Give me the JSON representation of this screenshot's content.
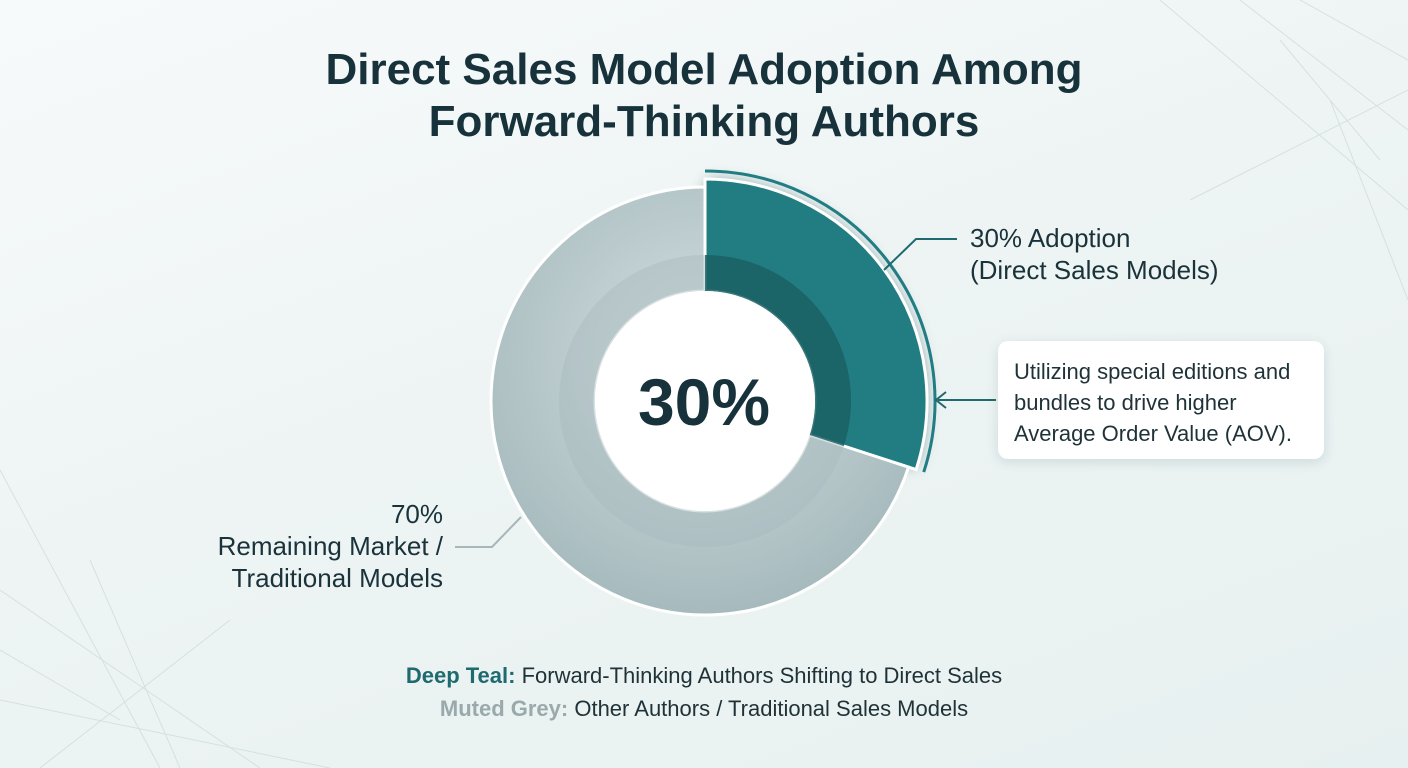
{
  "title_lines": [
    "Direct Sales Model Adoption Among",
    "Forward-Thinking Authors"
  ],
  "chart_data": {
    "type": "pie",
    "style": "donut",
    "slices": [
      {
        "label_line1": "30% Adoption",
        "label_line2": "(Direct Sales Models)",
        "value": 30,
        "color": "#217d83"
      },
      {
        "label_line1": "70%",
        "label_line2": "Remaining Market /",
        "label_line3": "Traditional Models",
        "value": 70,
        "color": "#b7c8ca"
      }
    ],
    "center_label": "30%"
  },
  "callout": {
    "text": "Utilizing special editions and bundles to drive higher Average Order Value (AOV)."
  },
  "legend": [
    {
      "key": "Deep Teal",
      "separator": ":",
      "text": " Forward-Thinking Authors Shifting to Direct Sales",
      "color": "#1f6a70"
    },
    {
      "key": "Muted Grey",
      "separator": ":",
      "text": " Other Authors / Traditional Sales Models",
      "color": "#9aa9ab"
    }
  ],
  "colors": {
    "teal": "#217d83",
    "teal_dark": "#1a5f64",
    "grey": "#b7c8ca",
    "grey_dark": "#a8bbbe",
    "text": "#17323a"
  }
}
